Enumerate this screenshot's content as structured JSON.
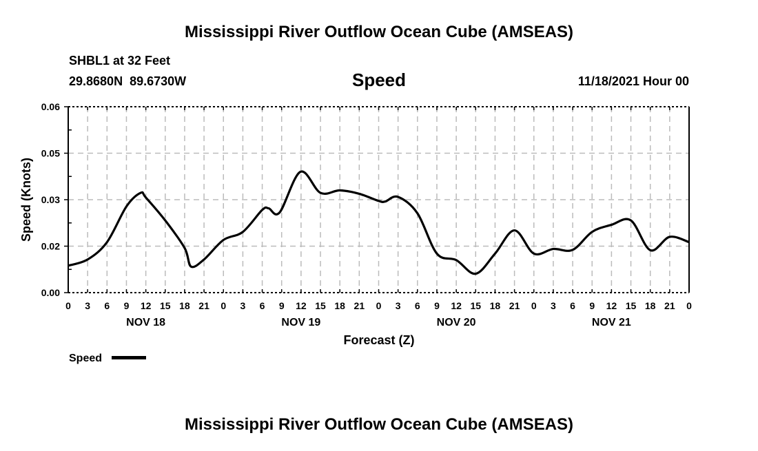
{
  "chart_data": {
    "type": "line",
    "title": "Mississippi River Outflow Ocean Cube (AMSEAS)",
    "footer_title": "Mississippi River Outflow Ocean Cube (AMSEAS)",
    "station": "SHBL1 at 32 Feet",
    "location": "29.8680N  89.6730W",
    "subtitle": "Speed",
    "datetime": "11/18/2021 Hour 00",
    "xlabel": "Forecast (Z)",
    "ylabel": "Speed (Knots)",
    "xlim": [
      0,
      96
    ],
    "ylim": [
      0,
      0.06
    ],
    "y_ticks": [
      {
        "value": 0,
        "label": "0.00"
      },
      {
        "value": 0.015,
        "label": "0.02"
      },
      {
        "value": 0.03,
        "label": "0.03"
      },
      {
        "value": 0.045,
        "label": "0.05"
      },
      {
        "value": 0.06,
        "label": "0.06"
      }
    ],
    "x_tick_labels": [
      "0",
      "3",
      "6",
      "9",
      "12",
      "15",
      "18",
      "21",
      "0",
      "3",
      "6",
      "9",
      "12",
      "15",
      "18",
      "21",
      "0",
      "3",
      "6",
      "9",
      "12",
      "15",
      "18",
      "21",
      "0",
      "3",
      "6",
      "9",
      "12",
      "15",
      "18",
      "21",
      "0"
    ],
    "date_labels": [
      {
        "hour": 12,
        "label": "NOV 18"
      },
      {
        "hour": 36,
        "label": "NOV 19"
      },
      {
        "hour": 60,
        "label": "NOV 20"
      },
      {
        "hour": 84,
        "label": "NOV 21"
      }
    ],
    "grid": true,
    "legend": {
      "label": "Speed",
      "placement": "bottom-left"
    },
    "series": [
      {
        "name": "Speed",
        "color": "#000000",
        "x": [
          0,
          3,
          6,
          9,
          11.2,
          12,
          15,
          18,
          19,
          21,
          24,
          27,
          30,
          31,
          32.7,
          35.9,
          39,
          42,
          45,
          48,
          49,
          51,
          54,
          57,
          60,
          63,
          66,
          69,
          72,
          75,
          78,
          81,
          84,
          87,
          90,
          93,
          96
        ],
        "values": [
          0.0087,
          0.0107,
          0.0163,
          0.0278,
          0.0322,
          0.0307,
          0.0233,
          0.0144,
          0.0084,
          0.0107,
          0.017,
          0.0196,
          0.0267,
          0.0272,
          0.0259,
          0.039,
          0.0322,
          0.033,
          0.0319,
          0.0296,
          0.0294,
          0.0309,
          0.0256,
          0.0126,
          0.0105,
          0.0061,
          0.0126,
          0.0201,
          0.0126,
          0.0141,
          0.0138,
          0.0196,
          0.0219,
          0.0233,
          0.0137,
          0.018,
          0.0163
        ]
      }
    ]
  }
}
